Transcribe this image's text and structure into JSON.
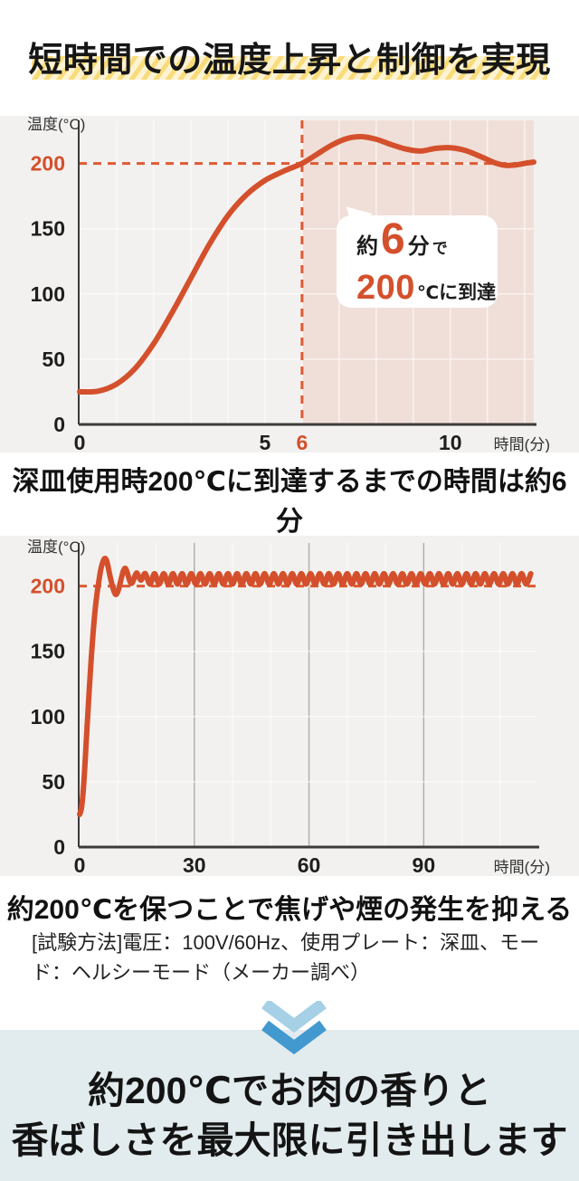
{
  "header": {
    "title": "短時間での温度上昇と制御を実現"
  },
  "colors": {
    "accent_orange": "#d4502c",
    "dashed_orange": "#dd5b33",
    "tick_dark": "#1e1e1e",
    "axis_dark": "#3b3b3b",
    "panel_gray": "#f2f1ef",
    "grid_white": "rgba(255,255,255,0.6)",
    "major_grid_gray": "#b3b1ae",
    "shaded_pink": "#f0dfd8",
    "highlight_yellow": "#f8dc7a",
    "highlight_cream": "#fdf3d3",
    "footer_blue": "#e2ebee",
    "chevron_light": "#a5d0e6",
    "chevron_dark": "#4299cf"
  },
  "chart_data": [
    {
      "type": "line",
      "title": "深皿使用時200℃に到達するまでの時間は約6分",
      "ylabel": "温度(°C)",
      "xlabel": "時間(分)",
      "xlim": [
        0,
        12.25
      ],
      "ylim": [
        0,
        233
      ],
      "x_ticks": [
        0,
        5,
        6,
        10
      ],
      "x_tick_highlight": 6,
      "y_ticks": [
        0,
        50,
        100,
        150,
        200
      ],
      "y_tick_highlight": 200,
      "grid": {
        "x_minor_step": 1,
        "y_step": 50
      },
      "ref_line_y": 200,
      "ref_line_x": 6,
      "shaded_region_x": [
        6,
        12.25
      ],
      "legend": "none",
      "series": [
        {
          "points": [
            [
              0,
              25
            ],
            [
              0.5,
              25.5
            ],
            [
              1,
              31
            ],
            [
              1.5,
              43
            ],
            [
              2,
              62
            ],
            [
              2.5,
              86
            ],
            [
              3,
              112
            ],
            [
              3.5,
              138
            ],
            [
              4,
              160
            ],
            [
              4.5,
              176
            ],
            [
              5,
              187
            ],
            [
              5.5,
              194
            ],
            [
              6,
              200
            ],
            [
              6.4,
              207
            ],
            [
              6.8,
              214
            ],
            [
              7.2,
              219
            ],
            [
              7.6,
              220.5
            ],
            [
              8,
              218.5
            ],
            [
              8.4,
              214.5
            ],
            [
              8.8,
              211
            ],
            [
              9.2,
              209.5
            ],
            [
              9.6,
              211.5
            ],
            [
              10,
              212
            ],
            [
              10.4,
              210
            ],
            [
              10.8,
              205.5
            ],
            [
              11.2,
              200.5
            ],
            [
              11.5,
              198.5
            ],
            [
              11.8,
              199
            ],
            [
              12.1,
              200.5
            ],
            [
              12.25,
              201
            ]
          ]
        }
      ],
      "annotation": {
        "prefix": "約",
        "big_value": "6",
        "unit": "分",
        "suffix": "で",
        "line2_value": "200",
        "line2_unit": "℃",
        "line2_text": "に到達"
      }
    },
    {
      "type": "line",
      "title": "約200℃を保つことで焦げや煙の発生を抑える",
      "ylabel": "温度(°C)",
      "xlabel": "時間(分)",
      "xlim": [
        0,
        119.5
      ],
      "ylim": [
        0,
        233
      ],
      "x_ticks": [
        0,
        30,
        60,
        90
      ],
      "y_ticks": [
        0,
        50,
        100,
        150,
        200
      ],
      "y_tick_highlight": 200,
      "grid": {
        "x_minor_step": 10,
        "x_major_step": 30,
        "y_step": 50
      },
      "ref_line_y": 200,
      "legend": "none",
      "series": [
        {
          "points": [
            [
              0,
              25
            ],
            [
              0.5,
              30
            ],
            [
              1,
              45
            ],
            [
              1.5,
              68
            ],
            [
              2,
              95
            ],
            [
              2.5,
              120
            ],
            [
              3,
              143
            ],
            [
              3.5,
              163
            ],
            [
              4,
              180
            ],
            [
              4.5,
              193
            ],
            [
              5,
              203
            ],
            [
              5.5,
              212
            ],
            [
              6,
              218
            ],
            [
              6.5,
              221
            ],
            [
              7,
              220
            ],
            [
              7.5,
              214
            ],
            [
              8,
              207
            ],
            [
              8.5,
              201
            ],
            [
              9,
              196
            ],
            [
              9.5,
              193.5
            ],
            [
              10,
              196
            ],
            [
              10.5,
              201
            ],
            [
              11,
              207
            ],
            [
              11.5,
              212
            ],
            [
              12,
              213.5
            ],
            [
              12.5,
              210
            ],
            [
              13,
              205
            ],
            [
              13.5,
              202
            ],
            [
              14,
              204
            ],
            [
              14.5,
              208
            ],
            [
              15,
              210
            ],
            [
              15.5,
              207
            ],
            [
              16,
              204.5
            ],
            [
              16.5,
              206.5
            ]
          ],
          "steady_oscillation": {
            "t_start": 17.2,
            "t_end": 119,
            "step": 1.2,
            "high": 209.5,
            "low": 201.5
          }
        }
      ]
    }
  ],
  "captions": {
    "chart1": "深皿使用時200℃に到達するまでの時間は約6分",
    "chart2": "約200℃を保つことで焦げや煙の発生を抑える"
  },
  "method_note": "[試験方法]電圧：100V/60Hz、使用プレート：深皿、モード：ヘルシーモード（メーカー調べ）",
  "footer": {
    "line1": "約200℃でお肉の香りと",
    "line2": "香ばしさを最大限に引き出します"
  }
}
